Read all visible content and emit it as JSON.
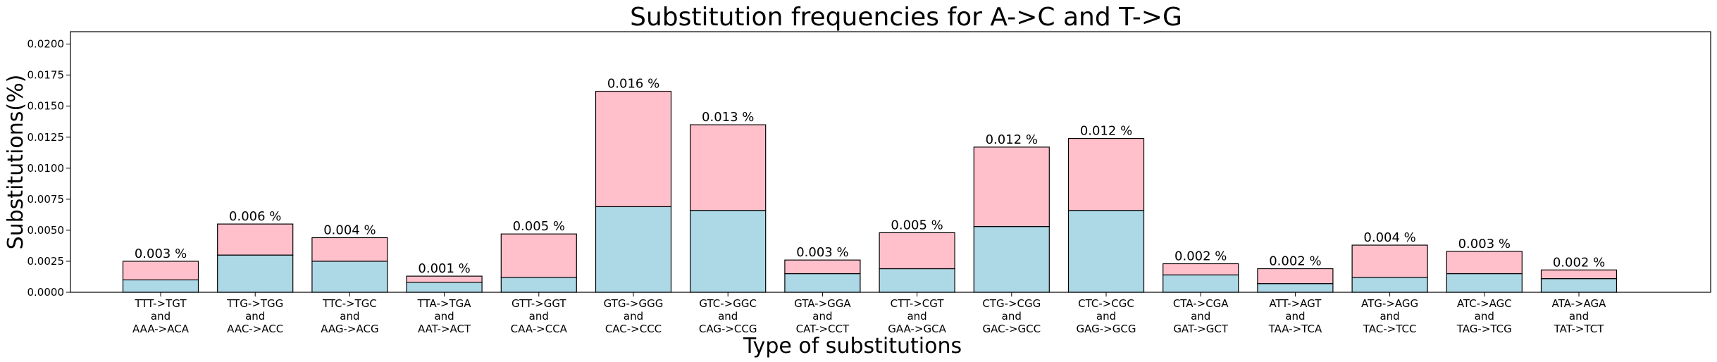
{
  "chart_data": {
    "type": "bar",
    "title": "Substitution frequencies for A->C and T->G",
    "xlabel": "Type of substitutions",
    "ylabel": "Substitutions(%)",
    "ylim": [
      0,
      0.021
    ],
    "yticks": [
      "0.0000",
      "0.0025",
      "0.0050",
      "0.0075",
      "0.0100",
      "0.0125",
      "0.0150",
      "0.0175",
      "0.0200"
    ],
    "stacked": true,
    "grid": false,
    "colors": {
      "lower": "#add8e6",
      "upper": "#ffc0cb",
      "edge": "#000000"
    },
    "categories": [
      [
        "TTT->TGT",
        "and",
        "AAA->ACA"
      ],
      [
        "TTG->TGG",
        "and",
        "AAC->ACC"
      ],
      [
        "TTC->TGC",
        "and",
        "AAG->ACG"
      ],
      [
        "TTA->TGA",
        "and",
        "AAT->ACT"
      ],
      [
        "GTT->GGT",
        "and",
        "CAA->CCA"
      ],
      [
        "GTG->GGG",
        "and",
        "CAC->CCC"
      ],
      [
        "GTC->GGC",
        "and",
        "CAG->CCG"
      ],
      [
        "GTA->GGA",
        "and",
        "CAT->CCT"
      ],
      [
        "CTT->CGT",
        "and",
        "GAA->GCA"
      ],
      [
        "CTG->CGG",
        "and",
        "GAC->GCC"
      ],
      [
        "CTC->CGC",
        "and",
        "GAG->GCG"
      ],
      [
        "CTA->CGA",
        "and",
        "GAT->GCT"
      ],
      [
        "ATT->AGT",
        "and",
        "TAA->TCA"
      ],
      [
        "ATG->AGG",
        "and",
        "TAC->TCC"
      ],
      [
        "ATC->AGC",
        "and",
        "TAG->TCG"
      ],
      [
        "ATA->AGA",
        "and",
        "TAT->TCT"
      ]
    ],
    "series": [
      {
        "values": [
          0.001,
          0.003,
          0.0025,
          0.0008,
          0.0012,
          0.0069,
          0.0066,
          0.0015,
          0.0019,
          0.0053,
          0.0066,
          0.0014,
          0.0007,
          0.0012,
          0.0015,
          0.0011
        ]
      },
      {
        "values": [
          0.0015,
          0.0025,
          0.0019,
          0.0005,
          0.0035,
          0.0093,
          0.0069,
          0.0011,
          0.0029,
          0.0064,
          0.0058,
          0.0009,
          0.0012,
          0.0026,
          0.0018,
          0.0007
        ]
      }
    ],
    "totals": [
      0.0025,
      0.0055,
      0.0044,
      0.0013,
      0.0047,
      0.0162,
      0.0135,
      0.0026,
      0.0048,
      0.0117,
      0.0124,
      0.0023,
      0.0019,
      0.0038,
      0.0033,
      0.0018
    ],
    "data_labels": [
      "0.003 %",
      "0.006 %",
      "0.004 %",
      "0.001 %",
      "0.005 %",
      "0.016 %",
      "0.013 %",
      "0.003 %",
      "0.005 %",
      "0.012 %",
      "0.012 %",
      "0.002 %",
      "0.002 %",
      "0.004 %",
      "0.003 %",
      "0.002 %"
    ]
  }
}
